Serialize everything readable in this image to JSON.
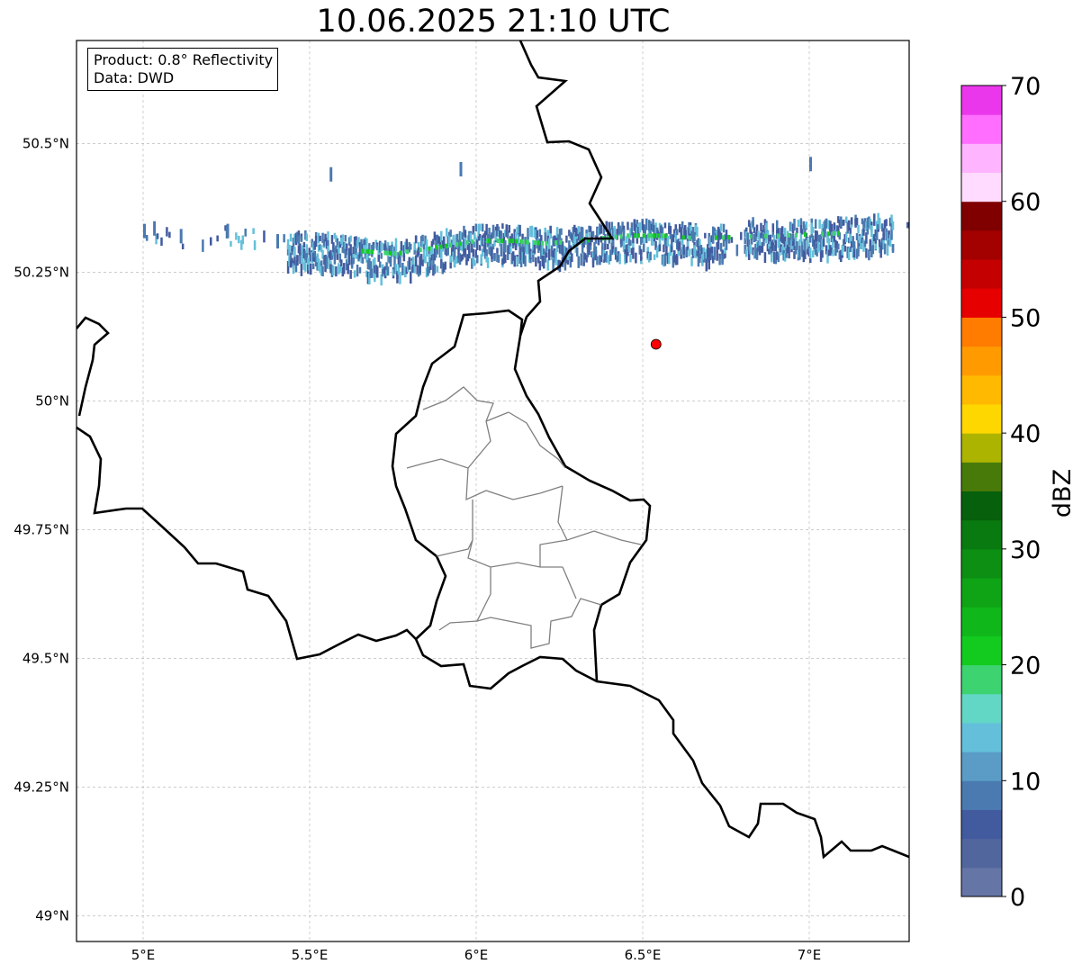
{
  "title": "10.06.2025 21:10 UTC",
  "info": {
    "product_line": "Product: 0.8° Reflectivity",
    "data_line": "Data: DWD"
  },
  "axes": {
    "lon_range": [
      4.8,
      7.3
    ],
    "lat_range": [
      48.95,
      50.7
    ],
    "x_ticks": [
      {
        "value": 5.0,
        "label": "5°E"
      },
      {
        "value": 5.5,
        "label": "5.5°E"
      },
      {
        "value": 6.0,
        "label": "6°E"
      },
      {
        "value": 6.5,
        "label": "6.5°E"
      },
      {
        "value": 7.0,
        "label": "7°E"
      }
    ],
    "y_ticks": [
      {
        "value": 50.5,
        "label": "50.5°N"
      },
      {
        "value": 50.25,
        "label": "50.25°N"
      },
      {
        "value": 50.0,
        "label": "50°N"
      },
      {
        "value": 49.75,
        "label": "49.75°N"
      },
      {
        "value": 49.5,
        "label": "49.5°N"
      },
      {
        "value": 49.25,
        "label": "49.25°N"
      },
      {
        "value": 49.0,
        "label": "49°N"
      }
    ],
    "grid": true
  },
  "marker": {
    "lon": 6.54,
    "lat": 50.11,
    "color": "#ff0000"
  },
  "colorbar": {
    "label": "dBZ",
    "min": 0,
    "max": 70,
    "tick_labels": [
      "0",
      "10",
      "20",
      "30",
      "40",
      "50",
      "60",
      "70"
    ],
    "colors": [
      "#6575a6",
      "#52669e",
      "#425b9f",
      "#4a7ab0",
      "#5a9cc6",
      "#64c0da",
      "#62d7c6",
      "#3dd371",
      "#13cb1f",
      "#10b71a",
      "#0fa316",
      "#0c8f13",
      "#087a10",
      "#06600c",
      "#487a0a",
      "#adb400",
      "#ffd700",
      "#ffb900",
      "#ff9b00",
      "#ff7c00",
      "#e60000",
      "#c50000",
      "#a30000",
      "#800000",
      "#ffdcff",
      "#ffb4ff",
      "#ff6eff",
      "#eb37eb"
    ]
  },
  "radar_echo": {
    "band_points": [
      [
        5.0,
        50.335
      ],
      [
        5.05,
        50.32
      ],
      [
        5.1,
        50.315
      ],
      [
        5.25,
        50.33
      ],
      [
        5.3,
        50.325
      ],
      [
        5.45,
        50.3
      ],
      [
        5.5,
        50.295
      ],
      [
        5.55,
        50.295
      ],
      [
        5.6,
        50.29
      ],
      [
        5.7,
        50.28
      ],
      [
        5.8,
        50.285
      ],
      [
        5.9,
        50.3
      ],
      [
        6.0,
        50.31
      ],
      [
        6.1,
        50.31
      ],
      [
        6.2,
        50.305
      ],
      [
        6.3,
        50.31
      ],
      [
        6.4,
        50.315
      ],
      [
        6.5,
        50.32
      ],
      [
        6.6,
        50.315
      ],
      [
        6.7,
        50.31
      ],
      [
        6.8,
        50.325
      ],
      [
        6.9,
        50.32
      ],
      [
        7.0,
        50.32
      ],
      [
        7.1,
        50.325
      ],
      [
        7.2,
        50.33
      ],
      [
        7.3,
        50.335
      ]
    ],
    "core_points": [
      [
        5.65,
        50.29
      ],
      [
        5.75,
        50.285
      ],
      [
        5.9,
        50.3
      ],
      [
        6.0,
        50.31
      ],
      [
        6.1,
        50.31
      ],
      [
        6.2,
        50.305
      ],
      [
        6.3,
        50.31
      ],
      [
        6.45,
        50.32
      ],
      [
        6.55,
        50.32
      ],
      [
        6.65,
        50.315
      ],
      [
        6.9,
        50.32
      ],
      [
        7.1,
        50.325
      ]
    ]
  }
}
